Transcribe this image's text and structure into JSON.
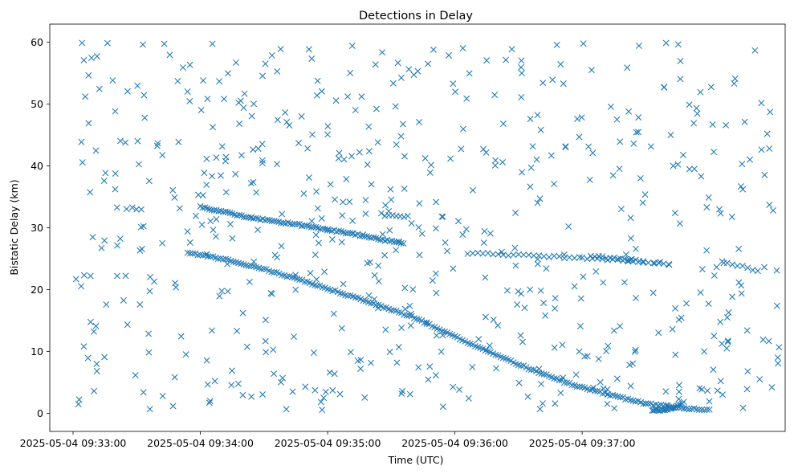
{
  "chart_data": {
    "type": "scatter",
    "title": "Detections in Delay",
    "xlabel": "Time (UTC)",
    "ylabel": "Bistatic Delay (km)",
    "x_unit": "minutes after 2025-05-04 09:33:00",
    "xlim": [
      -0.183,
      5.595
    ],
    "ylim": [
      -2.9,
      62.9
    ],
    "grid": false,
    "legend": "none",
    "marker": "x",
    "color": "#1f77b4",
    "xticks": [
      0,
      1,
      2,
      3,
      4
    ],
    "xtick_labels": [
      "2025-05-04 09:33:00",
      "2025-05-04 09:34:00",
      "2025-05-04 09:35:00",
      "2025-05-04 09:36:00",
      "2025-05-04 09:37:00"
    ],
    "yticks": [
      0,
      10,
      20,
      30,
      40,
      50,
      60
    ],
    "ytick_labels": [
      "0",
      "10",
      "20",
      "30",
      "40",
      "50",
      "60"
    ],
    "tracks": [
      {
        "points": [
          [
            0.9,
            26.0
          ],
          [
            1.2,
            24.9
          ],
          [
            1.5,
            23.3
          ],
          [
            1.8,
            21.5
          ],
          [
            2.1,
            19.5
          ],
          [
            2.4,
            17.5
          ],
          [
            2.7,
            15.3
          ],
          [
            3.0,
            12.4
          ],
          [
            3.3,
            9.6
          ],
          [
            3.6,
            7.1
          ],
          [
            3.9,
            4.8
          ],
          [
            4.2,
            3.1
          ],
          [
            4.5,
            1.6
          ],
          [
            4.8,
            0.8
          ],
          [
            5.0,
            0.6
          ]
        ],
        "x_step": 0.02,
        "spread": 0.25
      },
      {
        "points": [
          [
            4.55,
            0.5
          ],
          [
            4.6,
            0.5
          ],
          [
            4.65,
            0.6
          ],
          [
            4.7,
            0.8
          ],
          [
            4.75,
            1.2
          ],
          [
            4.8,
            1.8
          ]
        ],
        "x_step": 0.012,
        "spread": 0.2
      },
      {
        "points": [
          [
            1.0,
            33.4
          ],
          [
            1.4,
            31.6
          ],
          [
            1.8,
            30.4
          ],
          [
            2.2,
            29.0
          ],
          [
            2.6,
            27.4
          ]
        ],
        "x_step": 0.018,
        "spread": 0.25
      },
      {
        "points": [
          [
            3.1,
            25.9
          ],
          [
            4.0,
            25.1
          ],
          [
            4.7,
            24.2
          ]
        ],
        "x_step": 0.04,
        "spread": 0.3
      },
      {
        "points": [
          [
            4.1,
            25.4
          ],
          [
            4.3,
            25.0
          ],
          [
            4.5,
            24.6
          ]
        ],
        "x_step": 0.03,
        "spread": 0.25
      },
      {
        "points": [
          [
            2.45,
            32.0
          ],
          [
            2.65,
            31.8
          ]
        ],
        "x_step": 0.03,
        "spread": 0.2
      },
      {
        "points": [
          [
            5.1,
            24.5
          ],
          [
            5.4,
            23.0
          ]
        ],
        "x_step": 0.04,
        "spread": 0.3
      }
    ],
    "noise": {
      "count": 600,
      "x_range": [
        0.0,
        5.55
      ],
      "y_range": [
        0.5,
        60.0
      ]
    }
  }
}
